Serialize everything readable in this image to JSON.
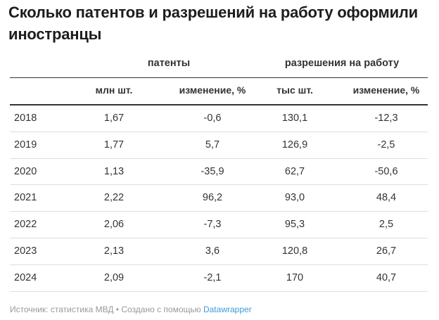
{
  "title": "Сколько патентов и разрешений на работу оформили иностранцы",
  "groups": {
    "patents": "патенты",
    "permits": "разрешения на работу"
  },
  "columns": [
    "",
    "млн шт.",
    "изменение, %",
    "тыс шт.",
    "изменение, %"
  ],
  "rows": [
    [
      "2018",
      "1,67",
      "-0,6",
      "130,1",
      "-12,3"
    ],
    [
      "2019",
      "1,77",
      "5,7",
      "126,9",
      "-2,5"
    ],
    [
      "2020",
      "1,13",
      "-35,9",
      "62,7",
      "-50,6"
    ],
    [
      "2021",
      "2,22",
      "96,2",
      "93,0",
      "48,4"
    ],
    [
      "2022",
      "2,06",
      "-7,3",
      "95,3",
      "2,5"
    ],
    [
      "2023",
      "2,13",
      "3,6",
      "120,8",
      "26,7"
    ],
    [
      "2024",
      "2,09",
      "-2,1",
      "170",
      "40,7"
    ]
  ],
  "footer": {
    "source": "Источник: статистика МВД • Создано с помощью ",
    "tool": "Datawrapper"
  }
}
